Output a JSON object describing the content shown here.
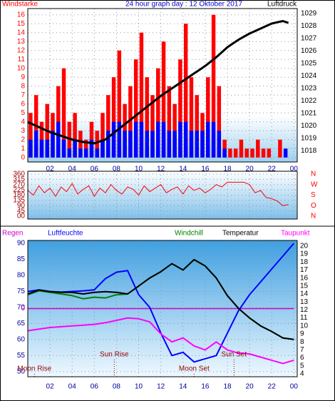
{
  "chart_data": [
    {
      "type": "bar",
      "title": "24 hour graph day : 12 Oktober 2017",
      "y_label": "Windstarke",
      "y2_label": "Luftdruck",
      "x": [
        0,
        0.5,
        1,
        1.5,
        2,
        2.5,
        3,
        3.5,
        4,
        4.5,
        5,
        5.5,
        6,
        6.5,
        7,
        7.5,
        8,
        8.5,
        9,
        9.5,
        10,
        10.5,
        11,
        11.5,
        12,
        12.5,
        13,
        13.5,
        14,
        14.5,
        15,
        15.5,
        16,
        16.5,
        17,
        17.5,
        18,
        18.5,
        19,
        19.5,
        20,
        20.5,
        21,
        21.5,
        22,
        22.5,
        23,
        23.5
      ],
      "xlim": [
        0,
        24.3
      ],
      "xticks": [
        {
          "value": 2,
          "label": "02"
        },
        {
          "value": 4,
          "label": "04"
        },
        {
          "value": 6,
          "label": "06"
        },
        {
          "value": 8,
          "label": "08"
        },
        10,
        12,
        14,
        16,
        18,
        20,
        22,
        {
          "value": 24,
          "label": "00"
        }
      ],
      "ylim": [
        -0.5,
        16.7
      ],
      "yticks": [
        0,
        1,
        2,
        3,
        4,
        5,
        6,
        7,
        8,
        9,
        10,
        11,
        12,
        13,
        14,
        15,
        16
      ],
      "y2lim": [
        1017.1,
        1029.4
      ],
      "y2ticks": [
        1029,
        1028,
        1027,
        1026,
        1025,
        1024,
        1023,
        1022,
        1021,
        1020,
        1019,
        1018
      ],
      "grid": true,
      "series": [
        {
          "type": "bar",
          "color": "#ff0000",
          "values": [
            5,
            7,
            4,
            6,
            5,
            8,
            10,
            4,
            5,
            3,
            2,
            4,
            3,
            5,
            7,
            9,
            12,
            6,
            8,
            11,
            14,
            9,
            7,
            10,
            13,
            8,
            6,
            11,
            15,
            9,
            7,
            5,
            9,
            16,
            8,
            2,
            1,
            1,
            2,
            1,
            1,
            2,
            1,
            1,
            0,
            2,
            0,
            0
          ]
        },
        {
          "type": "bar",
          "color": "#0000ff",
          "values": [
            2,
            3,
            2,
            2,
            3,
            4,
            2,
            1,
            2,
            1,
            1,
            2,
            1,
            2,
            3,
            4,
            4,
            3,
            3,
            4,
            4,
            3,
            3,
            4,
            4,
            3,
            3,
            4,
            4,
            3,
            3,
            3,
            4,
            4,
            3,
            1,
            0,
            0,
            0,
            0,
            0,
            0,
            0,
            0,
            0,
            0,
            1,
            0
          ]
        },
        {
          "type": "line",
          "axis": "y2",
          "color": "#000000",
          "values": [
            1020.3,
            1020.1,
            1019.9,
            1019.7,
            1019.5,
            1019.35,
            1019.2,
            1019.05,
            1018.9,
            1018.8,
            1018.7,
            1018.65,
            1018.6,
            1018.75,
            1018.9,
            1019.25,
            1019.6,
            1019.95,
            1020.3,
            1020.65,
            1021.0,
            1021.35,
            1021.7,
            1022.05,
            1022.4,
            1022.7,
            1023.0,
            1023.3,
            1023.6,
            1023.9,
            1024.2,
            1024.5,
            1024.8,
            1025.15,
            1025.5,
            1025.9,
            1026.3,
            1026.6,
            1026.9,
            1027.15,
            1027.4,
            1027.6,
            1027.8,
            1028.0,
            1028.2,
            1028.3,
            1028.4,
            1028.25
          ]
        }
      ]
    },
    {
      "type": "line",
      "x": [
        0,
        0.5,
        1,
        1.5,
        2,
        2.5,
        3,
        3.5,
        4,
        4.5,
        5,
        5.5,
        6,
        6.5,
        7,
        7.5,
        8,
        8.5,
        9,
        9.5,
        10,
        10.5,
        11,
        11.5,
        12,
        12.5,
        13,
        13.5,
        14,
        14.5,
        15,
        15.5,
        16,
        16.5,
        17,
        17.5,
        18,
        18.5,
        19,
        19.5,
        20,
        20.5,
        21,
        21.5,
        22,
        22.5,
        23,
        23.5
      ],
      "xlim": [
        0,
        24.3
      ],
      "ylim": [
        -24,
        384
      ],
      "yticks": [
        360,
        315,
        270,
        225,
        180,
        135,
        90,
        45,
        {
          "value": 0,
          "label": "00"
        }
      ],
      "y2lim": [
        -24,
        384
      ],
      "y2ticks": [
        {
          "value": 360,
          "label": "N"
        },
        {
          "value": 270,
          "label": "W"
        },
        {
          "value": 180,
          "label": "S"
        },
        {
          "value": 90,
          "label": "O"
        },
        {
          "value": 0,
          "label": "N"
        }
      ],
      "grid": true,
      "series": [
        {
          "color": "#ff0000",
          "values": [
            220,
            180,
            260,
            200,
            240,
            170,
            250,
            210,
            280,
            190,
            230,
            260,
            170,
            240,
            200,
            270,
            220,
            190,
            250,
            230,
            180,
            260,
            210,
            240,
            270,
            200,
            230,
            250,
            190,
            260,
            220,
            240,
            200,
            230,
            270,
            250,
            290,
            290,
            290,
            290,
            270,
            200,
            220,
            160,
            150,
            130,
            90,
            100
          ]
        }
      ]
    },
    {
      "type": "line",
      "x": [
        0,
        1,
        2,
        3,
        4,
        5,
        6,
        7,
        8,
        9,
        10,
        11,
        12,
        13,
        14,
        15,
        16,
        17,
        18,
        19,
        20,
        21,
        22,
        23,
        24
      ],
      "xlim": [
        0,
        24.3
      ],
      "xticks": [
        {
          "value": 2,
          "label": "02"
        },
        {
          "value": 4,
          "label": "04"
        },
        {
          "value": 6,
          "label": "06"
        },
        {
          "value": 8,
          "label": "08"
        },
        10,
        12,
        14,
        16,
        18,
        20,
        22,
        {
          "value": 24,
          "label": "00"
        }
      ],
      "ylim": [
        48.4,
        90.9
      ],
      "yticks": [
        90,
        85,
        80,
        75,
        70,
        65,
        60,
        55,
        50
      ],
      "y2lim": [
        3.64,
        20.7
      ],
      "y2ticks": [
        20,
        19,
        18,
        17,
        16,
        15,
        14,
        13,
        12,
        11,
        10,
        9,
        8,
        7,
        6,
        5,
        4
      ],
      "y3lim": [
        -1,
        1
      ],
      "y3ticks": [
        0
      ],
      "grid": true,
      "series": [
        {
          "name": "Regen",
          "axis": "y3",
          "color": "#cc00cc",
          "values": [
            0,
            0,
            0,
            0,
            0,
            0,
            0,
            0,
            0,
            0,
            0,
            0,
            0,
            0,
            0,
            0,
            0,
            0,
            0,
            0,
            0,
            0,
            0,
            0,
            0
          ]
        },
        {
          "name": "Luftfeuchte",
          "color": "#0000ff",
          "values": [
            75,
            75.5,
            75,
            74.8,
            75,
            75.2,
            75.5,
            79,
            81,
            81.5,
            74,
            70,
            62,
            55,
            56,
            53,
            54,
            55,
            62,
            69,
            74,
            78,
            82,
            86,
            90
          ]
        },
        {
          "name": "Windchill",
          "axis": "y2",
          "color": "#008000",
          "values": [
            13.9,
            14.4,
            14.2,
            14.0,
            13.8,
            13.4,
            13.6,
            13.5,
            13.9,
            14.0,
            15.0,
            16.0,
            16.8,
            17.8,
            17.0,
            18.3,
            17.5,
            16.0,
            13.8,
            12.2,
            11.0,
            10.0,
            9.3,
            8.5,
            8.3
          ]
        },
        {
          "name": "Temperatur",
          "axis": "y2",
          "color": "#000000",
          "values": [
            14.0,
            14.5,
            14.3,
            14.2,
            14.2,
            14.0,
            14.2,
            14.3,
            14.2,
            14.0,
            15.0,
            16.0,
            16.8,
            17.8,
            17.0,
            18.3,
            17.5,
            16.0,
            13.8,
            12.2,
            11.0,
            10.0,
            9.3,
            8.5,
            8.3
          ]
        },
        {
          "name": "Taupunkt",
          "axis": "y2",
          "color": "#ff00ff",
          "values": [
            9.4,
            9.6,
            9.8,
            9.9,
            10.0,
            10.1,
            10.2,
            10.4,
            10.7,
            11.0,
            10.9,
            10.5,
            9.0,
            8.0,
            8.5,
            7.5,
            7.0,
            8.0,
            7.0,
            6.6,
            6.5,
            6.1,
            5.7,
            5.3,
            5.7
          ]
        }
      ],
      "annotations": [
        {
          "label": "Moon Rise",
          "x": 0.6
        },
        {
          "label": "Sun Rise",
          "x": 7.8
        },
        {
          "label": "Moon Set",
          "x": 15
        },
        {
          "label": "Sun Set",
          "x": 18.6
        }
      ]
    }
  ]
}
